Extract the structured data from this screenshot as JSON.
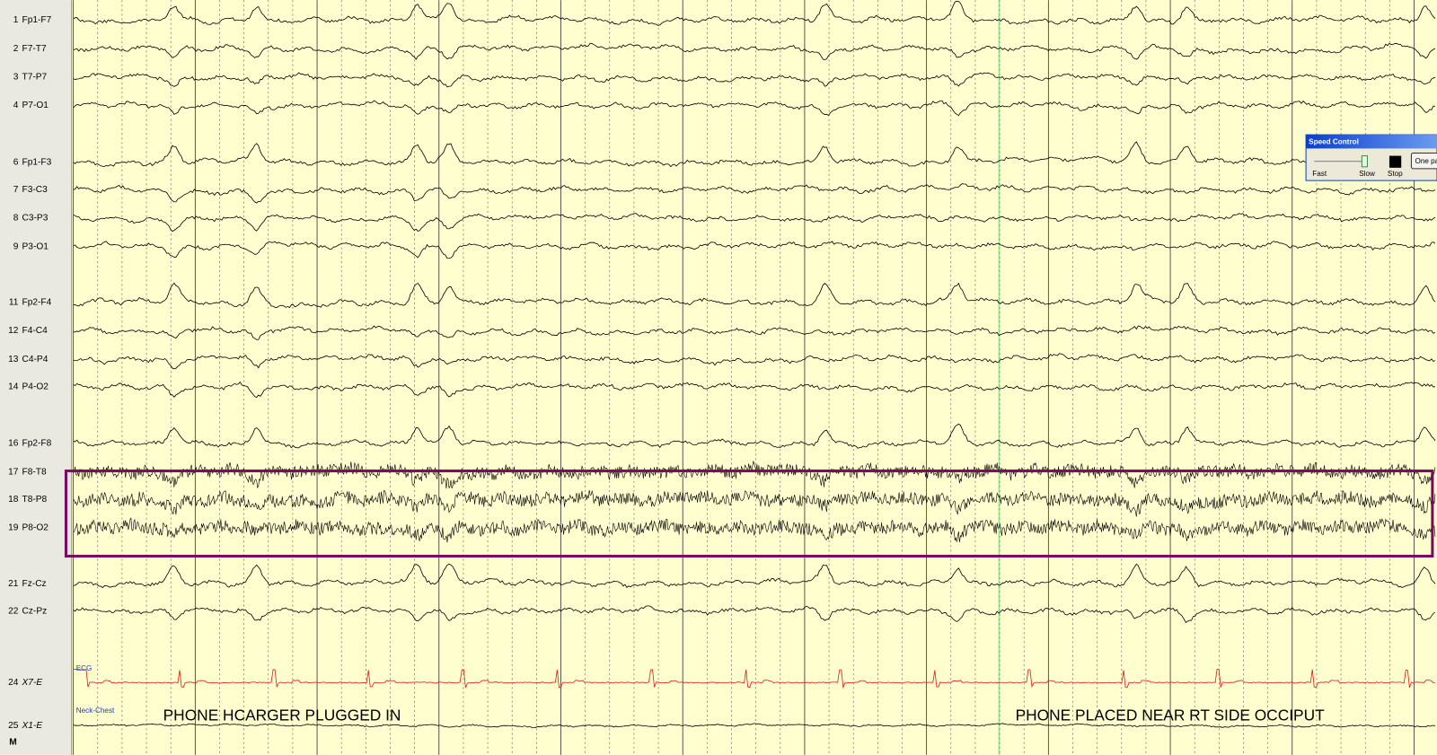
{
  "channels": [
    {
      "number": 1,
      "label": "Fp1-F7"
    },
    {
      "number": 2,
      "label": "F7-T7"
    },
    {
      "number": 3,
      "label": "T7-P7"
    },
    {
      "number": 4,
      "label": "P7-O1"
    },
    {
      "number": 6,
      "label": "Fp1-F3"
    },
    {
      "number": 7,
      "label": "F3-C3"
    },
    {
      "number": 8,
      "label": "C3-P3"
    },
    {
      "number": 9,
      "label": "P3-O1"
    },
    {
      "number": 11,
      "label": "Fp2-F4"
    },
    {
      "number": 12,
      "label": "F4-C4"
    },
    {
      "number": 13,
      "label": "C4-P4"
    },
    {
      "number": 14,
      "label": "P4-O2"
    },
    {
      "number": 16,
      "label": "Fp2-F8"
    },
    {
      "number": 17,
      "label": "F8-T8"
    },
    {
      "number": 18,
      "label": "T8-P8"
    },
    {
      "number": 19,
      "label": "P8-O2"
    },
    {
      "number": 21,
      "label": "Fz-Cz"
    },
    {
      "number": 22,
      "label": "Cz-Pz"
    },
    {
      "number": 24,
      "label": "X7-E"
    },
    {
      "number": 25,
      "label": "X1-E"
    }
  ],
  "montage_marker": "M",
  "trace_labels": {
    "ecg": "ECG",
    "neck": "Neck-Chest"
  },
  "annotations": {
    "left": "PHONE HCARGER PLUGGED IN",
    "right": "PHONE PLACED NEAR RT SIDE OCCIPUT"
  },
  "speed_control": {
    "title": "Speed Control",
    "fast": "Fast",
    "slow": "Slow",
    "stop": "Stop",
    "button": "One pa"
  }
}
